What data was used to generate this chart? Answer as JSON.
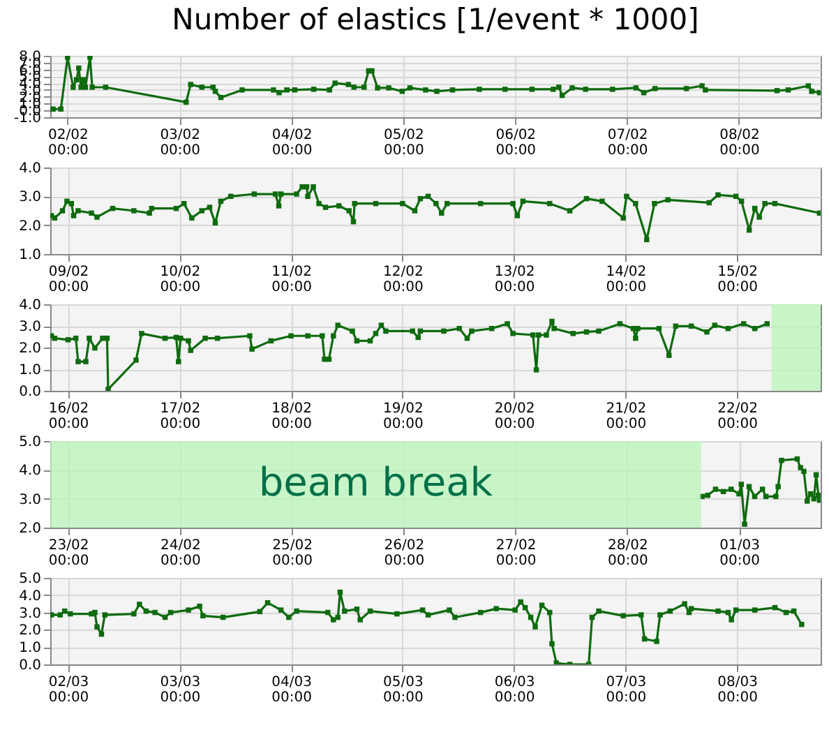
{
  "chart_data": [
    {
      "type": "line",
      "title": "Number of elastics [1/event * 1000]",
      "grid": true,
      "marker": "square",
      "xlim": [
        "--02-01T20:17",
        "--02-08T17:31"
      ],
      "xticks": [
        {
          "value": "--02-02",
          "label": "02/02\n00:00"
        },
        {
          "value": "--02-03",
          "label": "03/02\n00:00"
        },
        {
          "value": "--02-04",
          "label": "04/02\n00:00"
        },
        {
          "value": "--02-05",
          "label": "05/02\n00:00"
        },
        {
          "value": "--02-06",
          "label": "06/02\n00:00"
        },
        {
          "value": "--02-07",
          "label": "07/02\n00:00"
        },
        {
          "value": "--02-08",
          "label": "08/02\n00:00"
        }
      ],
      "ylim": [
        -1,
        8
      ],
      "yticks": [
        {
          "value": -1,
          "label": "-1.0"
        },
        {
          "value": 0,
          "label": "0.0"
        },
        {
          "value": 1,
          "label": "1.0"
        },
        {
          "value": 2,
          "label": "2.0"
        },
        {
          "value": 3,
          "label": "3.0"
        },
        {
          "value": 4,
          "label": "4.0"
        },
        {
          "value": 5,
          "label": "5.0"
        },
        {
          "value": 6,
          "label": "6.0"
        },
        {
          "value": 7,
          "label": "7.0"
        },
        {
          "value": 8,
          "label": "8.0"
        }
      ],
      "x": [
        "--02-01T20:53",
        "--02-01T22:34",
        "--02-02T00:00",
        "--02-02T01:12",
        "--02-02T01:55",
        "--02-02T02:24",
        "--02-02T02:53",
        "--02-02T03:22",
        "--02-02T03:50",
        "--02-02T04:48",
        "--02-02T05:17",
        "--02-02T08:10",
        "--02-03T01:26",
        "--02-03T02:24",
        "--02-03T04:48",
        "--02-03T07:12",
        "--02-03T07:41",
        "--02-03T08:53",
        "--02-03T13:26",
        "--02-03T20:10",
        "--02-03T21:22",
        "--02-03T23:02",
        "--02-04T00:43",
        "--02-04T04:48",
        "--02-04T08:10",
        "--02-04T09:22",
        "--02-04T12:14",
        "--02-04T13:26",
        "--02-04T15:36",
        "--02-04T16:34",
        "--02-04T17:17",
        "--02-04T18:29",
        "--02-04T20:53",
        "--02-04T23:46",
        "--02-05T01:26",
        "--02-05T04:48",
        "--02-05T07:12",
        "--02-05T10:34",
        "--02-05T16:19",
        "--02-05T21:50",
        "--02-06T03:36",
        "--02-06T08:10",
        "--02-06T09:22",
        "--02-06T10:05",
        "--02-06T12:14",
        "--02-06T15:07",
        "--02-06T20:53",
        "--02-07T01:55",
        "--02-07T03:36",
        "--02-07T06:00",
        "--02-07T12:43",
        "--02-07T16:05",
        "--02-07T16:48",
        "--02-08T08:10",
        "--02-08T10:34",
        "--02-08T14:53",
        "--02-08T15:36",
        "--02-08T17:17"
      ],
      "series": [
        {
          "color": "#0e6b0e",
          "values": [
            0.2,
            0.2,
            7.8,
            3.4,
            4.5,
            6.2,
            3.4,
            4.5,
            3.4,
            7.8,
            3.4,
            3.4,
            1.2,
            3.8,
            3.4,
            3.4,
            2.8,
            1.9,
            3.0,
            3.0,
            2.6,
            3.0,
            3.0,
            3.1,
            3.0,
            4.0,
            3.8,
            3.4,
            3.4,
            5.8,
            5.8,
            3.3,
            3.3,
            2.8,
            3.3,
            3.0,
            2.8,
            3.0,
            3.1,
            3.1,
            3.1,
            3.1,
            3.4,
            2.2,
            3.3,
            3.1,
            3.1,
            3.3,
            2.6,
            3.2,
            3.2,
            3.6,
            3.0,
            2.9,
            3.0,
            3.6,
            2.8,
            2.6
          ]
        }
      ]
    },
    {
      "type": "line",
      "grid": true,
      "marker": "square",
      "xlim": [
        "--02-08T20:10",
        "--02-15T18:00"
      ],
      "xticks": [
        {
          "value": "--02-09",
          "label": "09/02\n00:00"
        },
        {
          "value": "--02-10",
          "label": "10/02\n00:00"
        },
        {
          "value": "--02-11",
          "label": "11/02\n00:00"
        },
        {
          "value": "--02-12",
          "label": "12/02\n00:00"
        },
        {
          "value": "--02-13",
          "label": "13/02\n00:00"
        },
        {
          "value": "--02-14",
          "label": "14/02\n00:00"
        },
        {
          "value": "--02-15",
          "label": "15/02\n00:00"
        }
      ],
      "ylim": [
        1,
        4
      ],
      "yticks": [
        {
          "value": 1,
          "label": "1.0"
        },
        {
          "value": 2,
          "label": "2.0"
        },
        {
          "value": 3,
          "label": "3.0"
        },
        {
          "value": 4,
          "label": "4.0"
        }
      ],
      "x": [
        "--02-08T20:24",
        "--02-08T21:07",
        "--02-08T22:48",
        "--02-08T23:46",
        "--02-09T00:43",
        "--02-09T01:12",
        "--02-09T02:10",
        "--02-09T05:02",
        "--02-09T06:14",
        "--02-09T09:36",
        "--02-09T14:10",
        "--02-09T17:31",
        "--02-09T18:00",
        "--02-09T23:17",
        "--02-10T00:58",
        "--02-10T02:38",
        "--02-10T04:48",
        "--02-10T06:29",
        "--02-10T07:41",
        "--02-10T08:53",
        "--02-10T11:02",
        "--02-10T16:05",
        "--02-10T20:38",
        "--02-10T21:22",
        "--02-10T21:50",
        "--02-11T01:12",
        "--02-11T02:24",
        "--02-11T03:22",
        "--02-11T03:36",
        "--02-11T04:48",
        "--02-11T06:00",
        "--02-11T07:26",
        "--02-11T10:19",
        "--02-11T12:29",
        "--02-11T13:26",
        "--02-11T13:41",
        "--02-11T18:14",
        "--02-12T00:00",
        "--02-12T02:38",
        "--02-12T03:50",
        "--02-12T05:31",
        "--02-12T07:12",
        "--02-12T08:24",
        "--02-12T09:36",
        "--02-12T16:48",
        "--02-12T23:46",
        "--02-13T00:43",
        "--02-13T01:55",
        "--02-13T07:41",
        "--02-13T12:00",
        "--02-13T15:36",
        "--02-13T18:58",
        "--02-13T23:31",
        "--02-14T00:14",
        "--02-14T02:10",
        "--02-14T04:34",
        "--02-14T06:14",
        "--02-14T09:07",
        "--02-14T18:00",
        "--02-14T19:55",
        "--02-14T23:46",
        "--02-15T00:58",
        "--02-15T02:38",
        "--02-15T03:50",
        "--02-15T04:48",
        "--02-15T06:00",
        "--02-15T08:10",
        "--02-15T17:46"
      ],
      "series": [
        {
          "color": "#0e6b0e",
          "values": [
            2.33,
            2.25,
            2.5,
            2.83,
            2.75,
            2.33,
            2.5,
            2.42,
            2.28,
            2.58,
            2.5,
            2.42,
            2.58,
            2.58,
            2.75,
            2.25,
            2.5,
            2.62,
            2.08,
            2.83,
            3.0,
            3.08,
            3.08,
            2.67,
            3.08,
            3.08,
            3.33,
            3.33,
            3.0,
            3.33,
            2.75,
            2.62,
            2.67,
            2.5,
            2.12,
            2.75,
            2.75,
            2.75,
            2.5,
            2.92,
            3.0,
            2.75,
            2.42,
            2.75,
            2.75,
            2.75,
            2.33,
            2.83,
            2.75,
            2.5,
            2.92,
            2.83,
            2.25,
            3.0,
            2.75,
            1.5,
            2.75,
            2.88,
            2.78,
            3.05,
            3.0,
            2.83,
            1.83,
            2.58,
            2.28,
            2.75,
            2.75,
            2.42
          ]
        }
      ]
    },
    {
      "type": "line",
      "grid": true,
      "marker": "square",
      "xlim": [
        "--02-15T20:10",
        "--02-22T18:00"
      ],
      "xticks": [
        {
          "value": "--02-16",
          "label": "16/02\n00:00"
        },
        {
          "value": "--02-17",
          "label": "17/02\n00:00"
        },
        {
          "value": "--02-18",
          "label": "18/02\n00:00"
        },
        {
          "value": "--02-19",
          "label": "19/02\n00:00"
        },
        {
          "value": "--02-20",
          "label": "20/02\n00:00"
        },
        {
          "value": "--02-21",
          "label": "21/02\n00:00"
        },
        {
          "value": "--02-22",
          "label": "22/02\n00:00"
        }
      ],
      "ylim": [
        0,
        4
      ],
      "yticks": [
        {
          "value": 0,
          "label": "0.0"
        },
        {
          "value": 1,
          "label": "1.0"
        },
        {
          "value": 2,
          "label": "2.0"
        },
        {
          "value": 3,
          "label": "3.0"
        },
        {
          "value": 4,
          "label": "4.0"
        }
      ],
      "bands": [
        {
          "axis": "x",
          "from": "--02-22T07:26",
          "to": "--02-22T18:00",
          "color": "#b9f5b9"
        }
      ],
      "x": [
        "--02-15T20:24",
        "--02-15T21:07",
        "--02-16T00:00",
        "--02-16T01:41",
        "--02-16T02:10",
        "--02-16T03:50",
        "--02-16T04:34",
        "--02-16T05:46",
        "--02-16T07:26",
        "--02-16T08:24",
        "--02-16T08:38",
        "--02-16T14:38",
        "--02-16T15:50",
        "--02-16T20:53",
        "--02-16T23:17",
        "--02-16T23:46",
        "--02-17T00:14",
        "--02-17T01:55",
        "--02-17T02:24",
        "--02-17T05:31",
        "--02-17T08:10",
        "--02-17T15:07",
        "--02-17T15:36",
        "--02-17T19:41",
        "--02-18T00:00",
        "--02-18T03:36",
        "--02-18T06:43",
        "--02-18T07:12",
        "--02-18T08:10",
        "--02-18T09:07",
        "--02-18T10:05",
        "--02-18T13:12",
        "--02-18T14:10",
        "--02-18T17:02",
        "--02-18T18:14",
        "--02-18T19:26",
        "--02-18T20:24",
        "--02-19T02:10",
        "--02-19T03:22",
        "--02-19T03:50",
        "--02-19T08:53",
        "--02-19T12:14",
        "--02-19T13:55",
        "--02-19T14:53",
        "--02-19T19:12",
        "--02-19T22:34",
        "--02-19T23:46",
        "--02-20T04:05",
        "--02-20T04:48",
        "--02-20T05:17",
        "--02-20T06:58",
        "--02-20T08:10",
        "--02-20T08:38",
        "--02-20T12:43",
        "--02-20T15:36",
        "--02-20T18:14",
        "--02-20T22:48",
        "--02-21T01:41",
        "--02-21T02:10",
        "--02-21T02:38",
        "--02-21T07:12",
        "--02-21T09:22",
        "--02-21T10:48",
        "--02-21T14:10",
        "--02-21T17:31",
        "--02-21T19:12",
        "--02-21T22:05",
        "--02-22T01:26",
        "--02-22T03:50",
        "--02-22T06:29"
      ],
      "series": [
        {
          "color": "#0e6b0e",
          "values": [
            2.54,
            2.43,
            2.36,
            2.43,
            1.35,
            1.35,
            2.43,
            1.98,
            2.43,
            2.43,
            0.07,
            1.42,
            2.65,
            2.43,
            2.47,
            1.35,
            2.43,
            2.31,
            1.87,
            2.43,
            2.43,
            2.54,
            1.93,
            2.31,
            2.54,
            2.54,
            2.54,
            1.46,
            1.46,
            2.54,
            3.03,
            2.76,
            2.31,
            2.31,
            2.65,
            3.03,
            2.76,
            2.76,
            2.47,
            2.76,
            2.76,
            2.88,
            2.43,
            2.76,
            2.88,
            3.1,
            2.65,
            2.58,
            0.97,
            2.58,
            2.58,
            3.21,
            2.88,
            2.65,
            2.72,
            2.76,
            3.1,
            2.88,
            2.43,
            2.88,
            2.88,
            1.64,
            2.99,
            2.99,
            2.72,
            3.03,
            2.88,
            3.1,
            2.88,
            3.1
          ]
        }
      ]
    },
    {
      "type": "line",
      "grid": true,
      "marker": "square",
      "xlim": [
        "--02-22T20:10",
        "--03-01T17:31"
      ],
      "xticks": [
        {
          "value": "--02-23",
          "label": "23/02\n00:00"
        },
        {
          "value": "--02-24",
          "label": "24/02\n00:00"
        },
        {
          "value": "--02-25",
          "label": "25/02\n00:00"
        },
        {
          "value": "--02-26",
          "label": "26/02\n00:00"
        },
        {
          "value": "--02-27",
          "label": "27/02\n00:00"
        },
        {
          "value": "--02-28",
          "label": "28/02\n00:00"
        },
        {
          "value": "--03-01",
          "label": "01/03\n00:00"
        }
      ],
      "ylim": [
        2,
        5
      ],
      "yticks": [
        {
          "value": 2,
          "label": "2.0"
        },
        {
          "value": 3,
          "label": "3.0"
        },
        {
          "value": 4,
          "label": "4.0"
        },
        {
          "value": 5,
          "label": "5.0"
        }
      ],
      "bands": [
        {
          "axis": "x",
          "from": "--02-22T20:10",
          "to": "--02-28T15:50",
          "label": "beam break",
          "color": "#b9f5b9"
        }
      ],
      "x": [
        "--02-28T16:05",
        "--02-28T17:17",
        "--02-28T18:58",
        "--02-28T20:38",
        "--02-28T22:19",
        "--03-01T00:00",
        "--03-01T00:29",
        "--03-01T01:12",
        "--03-01T02:10",
        "--03-01T03:22",
        "--03-01T05:02",
        "--03-01T05:46",
        "--03-01T07:55",
        "--03-01T08:24",
        "--03-01T09:07",
        "--03-01T12:29",
        "--03-01T13:12",
        "--03-01T13:55",
        "--03-01T14:38",
        "--03-01T15:22",
        "--03-01T16:05",
        "--03-01T16:34",
        "--03-01T17:02",
        "--03-01T17:17"
      ],
      "series": [
        {
          "color": "#0e6b0e",
          "values": [
            3.08,
            3.12,
            3.33,
            3.25,
            3.33,
            3.17,
            3.5,
            2.12,
            3.42,
            3.08,
            3.33,
            3.08,
            3.08,
            3.42,
            4.33,
            4.38,
            4.08,
            3.95,
            2.92,
            3.17,
            3.0,
            3.83,
            3.12,
            2.95
          ]
        }
      ]
    },
    {
      "type": "line",
      "grid": true,
      "marker": "square",
      "xlim": [
        "--03-01T20:10",
        "--03-08T18:00"
      ],
      "xticks": [
        {
          "value": "--03-02",
          "label": "02/03\n00:00"
        },
        {
          "value": "--03-03",
          "label": "03/03\n00:00"
        },
        {
          "value": "--03-04",
          "label": "04/03\n00:00"
        },
        {
          "value": "--03-05",
          "label": "05/03\n00:00"
        },
        {
          "value": "--03-06",
          "label": "06/03\n00:00"
        },
        {
          "value": "--03-07",
          "label": "07/03\n00:00"
        },
        {
          "value": "--03-08",
          "label": "08/03\n00:00"
        }
      ],
      "ylim": [
        0,
        5
      ],
      "yticks": [
        {
          "value": 0,
          "label": "0.0"
        },
        {
          "value": 1,
          "label": "1.0"
        },
        {
          "value": 2,
          "label": "2.0"
        },
        {
          "value": 3,
          "label": "3.0"
        },
        {
          "value": 4,
          "label": "4.0"
        },
        {
          "value": 5,
          "label": "5.0"
        }
      ],
      "x": [
        "--03-01T20:24",
        "--03-01T22:19",
        "--03-01T23:17",
        "--03-02T00:29",
        "--03-02T05:02",
        "--03-02T05:46",
        "--03-02T06:14",
        "--03-02T07:12",
        "--03-02T07:55",
        "--03-02T14:10",
        "--03-02T15:22",
        "--03-02T16:48",
        "--03-02T18:43",
        "--03-02T20:53",
        "--03-02T22:05",
        "--03-03T01:55",
        "--03-03T04:19",
        "--03-03T05:02",
        "--03-03T09:22",
        "--03-03T17:17",
        "--03-03T18:58",
        "--03-03T21:50",
        "--03-03T23:31",
        "--03-04T01:12",
        "--03-04T07:55",
        "--03-04T09:07",
        "--03-04T10:05",
        "--03-04T10:34",
        "--03-04T11:31",
        "--03-04T14:10",
        "--03-04T14:53",
        "--03-04T17:02",
        "--03-04T22:48",
        "--03-05T04:19",
        "--03-05T05:31",
        "--03-05T10:05",
        "--03-05T11:17",
        "--03-05T16:48",
        "--03-05T20:10",
        "--03-06T00:14",
        "--03-06T01:26",
        "--03-06T02:24",
        "--03-06T03:36",
        "--03-06T04:34",
        "--03-06T06:00",
        "--03-06T07:41",
        "--03-06T08:10",
        "--03-06T09:07",
        "--03-06T12:00",
        "--03-06T16:05",
        "--03-06T16:48",
        "--03-06T18:14",
        "--03-06T23:31",
        "--03-07T03:22",
        "--03-07T04:05",
        "--03-07T06:43",
        "--03-07T07:26",
        "--03-07T09:36",
        "--03-07T12:43",
        "--03-07T13:41",
        "--03-07T14:10",
        "--03-07T19:55",
        "--03-07T22:05",
        "--03-07T22:48",
        "--03-07T23:46",
        "--03-08T03:50",
        "--03-08T08:10",
        "--03-08T10:34",
        "--03-08T12:14",
        "--03-08T13:55"
      ],
      "series": [
        {
          "color": "#0e6b0e",
          "values": [
            2.86,
            2.86,
            3.08,
            2.92,
            2.92,
            3.0,
            2.17,
            1.75,
            2.86,
            2.92,
            3.47,
            3.08,
            3.0,
            2.72,
            3.0,
            3.14,
            3.36,
            2.81,
            2.72,
            3.05,
            3.56,
            3.14,
            2.72,
            3.08,
            3.0,
            2.58,
            2.72,
            4.17,
            3.08,
            3.19,
            2.58,
            3.08,
            2.92,
            3.14,
            2.86,
            3.14,
            2.72,
            3.0,
            3.22,
            3.14,
            3.61,
            3.28,
            2.72,
            2.17,
            3.42,
            3.0,
            1.19,
            0.08,
            0.0,
            0.0,
            2.72,
            3.08,
            2.81,
            2.86,
            1.47,
            1.33,
            2.86,
            3.08,
            3.5,
            3.0,
            3.22,
            3.08,
            3.0,
            2.58,
            3.14,
            3.14,
            3.28,
            3.0,
            3.08,
            2.31
          ]
        }
      ]
    }
  ]
}
